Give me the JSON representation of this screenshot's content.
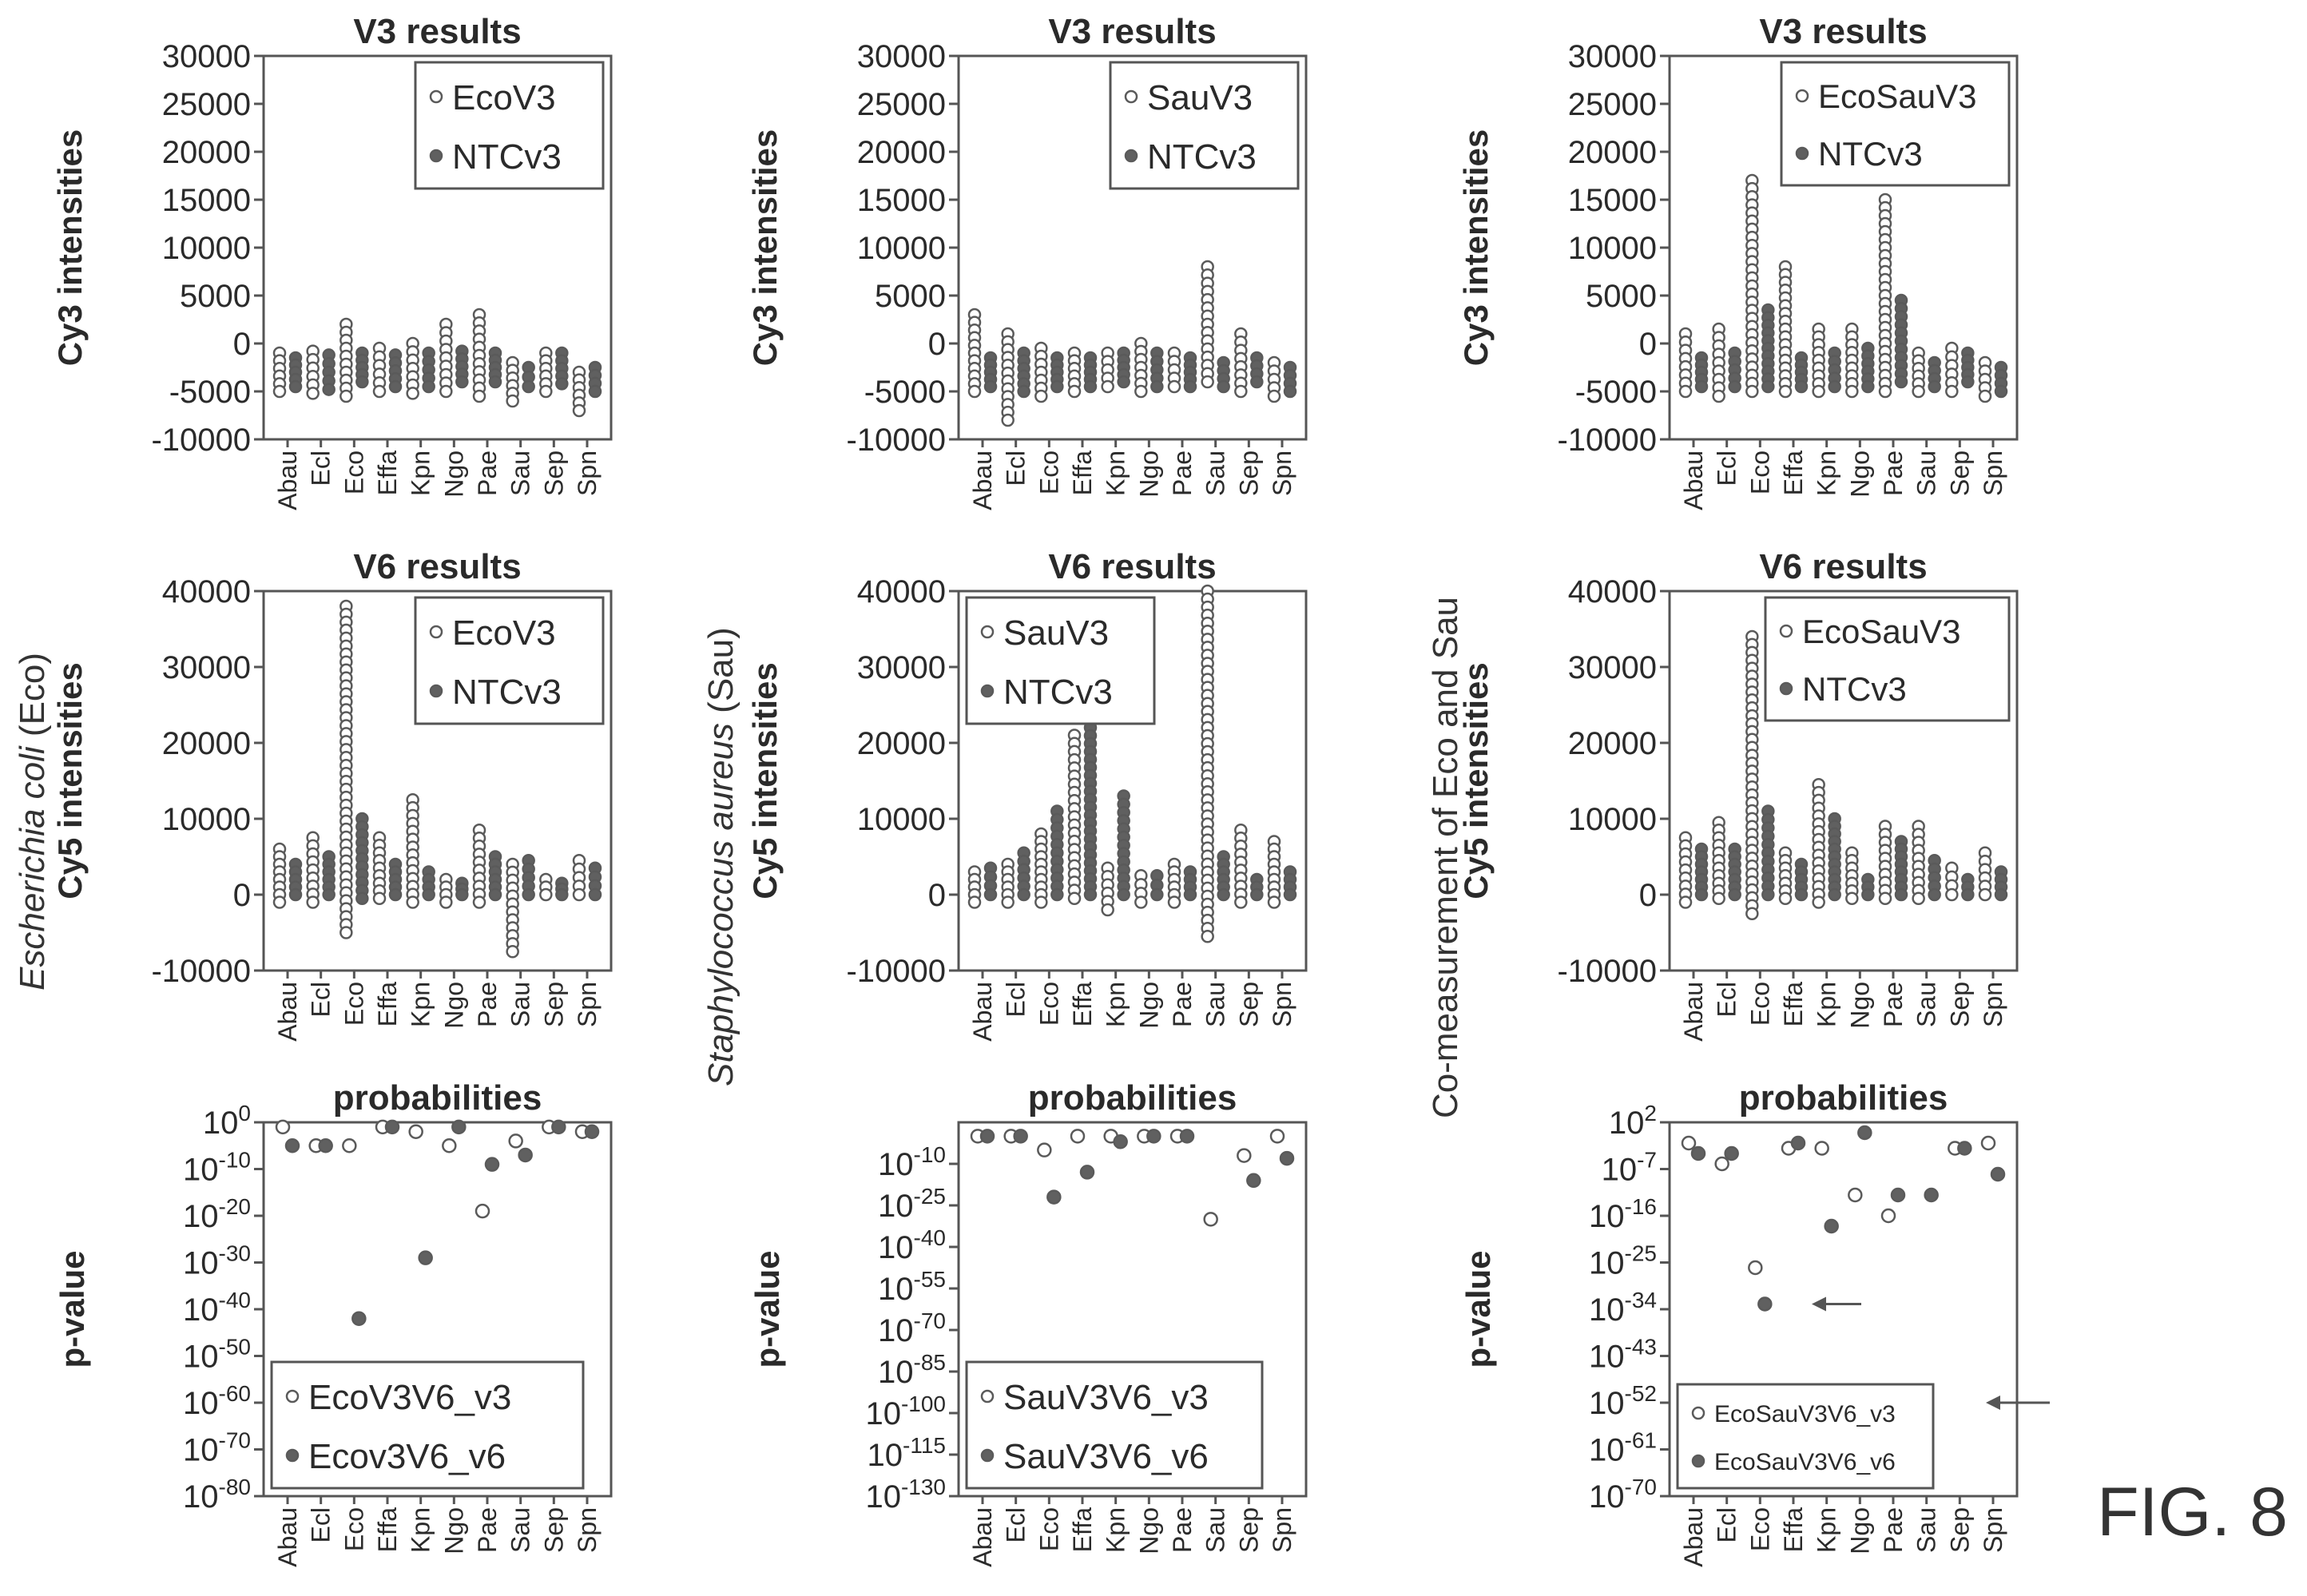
{
  "figure_label": "FIG. 8",
  "row_labels": [
    {
      "species": "Escherichia coli",
      "abbr": "(Eco)"
    },
    {
      "species": "Staphylococcus aureus",
      "abbr": "(Sau)"
    },
    {
      "species": "Co-measurement of Eco and Sau",
      "abbr": ""
    }
  ],
  "chart_data": [
    {
      "type": "scatter",
      "panel": "eco-v3",
      "title": "V3 results",
      "ylabel": "Cy3 intensities",
      "ylim": [
        -10000,
        30000
      ],
      "yticks": [
        "30000",
        "25000",
        "20000",
        "15000",
        "10000",
        "5000",
        "0",
        "-5000",
        "-10000"
      ],
      "categories": [
        "Abau",
        "Ecl",
        "Eco",
        "Effa",
        "Kpn",
        "Ngo",
        "Pae",
        "Sau",
        "Sep",
        "Spn"
      ],
      "series": [
        {
          "name": "EcoV3",
          "style": "open",
          "values": [
            [
              -1000,
              -5000
            ],
            [
              -800,
              -5200
            ],
            [
              2000,
              -5500
            ],
            [
              -500,
              -5000
            ],
            [
              0,
              -5200
            ],
            [
              2000,
              -5000
            ],
            [
              3000,
              -5500
            ],
            [
              -2000,
              -6000
            ],
            [
              -1000,
              -5000
            ],
            [
              -3000,
              -7000
            ]
          ]
        },
        {
          "name": "NTCv3",
          "style": "filled",
          "values": [
            [
              -1500,
              -4500
            ],
            [
              -1200,
              -4800
            ],
            [
              -1000,
              -4000
            ],
            [
              -1200,
              -4500
            ],
            [
              -1000,
              -4500
            ],
            [
              -800,
              -4000
            ],
            [
              -1000,
              -4000
            ],
            [
              -2500,
              -4500
            ],
            [
              -1000,
              -4200
            ],
            [
              -2500,
              -5000
            ]
          ]
        }
      ]
    },
    {
      "type": "scatter",
      "panel": "sau-v3",
      "title": "V3 results",
      "ylabel": "Cy3 intensities",
      "ylim": [
        -10000,
        30000
      ],
      "yticks": [
        "30000",
        "25000",
        "20000",
        "15000",
        "10000",
        "5000",
        "0",
        "-5000",
        "-10000"
      ],
      "categories": [
        "Abau",
        "Ecl",
        "Eco",
        "Effa",
        "Kpn",
        "Ngo",
        "Pae",
        "Sau",
        "Sep",
        "Spn"
      ],
      "series": [
        {
          "name": "SauV3",
          "style": "open",
          "values": [
            [
              3000,
              -5000
            ],
            [
              1000,
              -8000
            ],
            [
              -500,
              -5500
            ],
            [
              -1000,
              -5000
            ],
            [
              -1000,
              -4500
            ],
            [
              0,
              -5000
            ],
            [
              -1000,
              -4500
            ],
            [
              8000,
              -4000
            ],
            [
              1000,
              -5000
            ],
            [
              -2000,
              -5500
            ]
          ]
        },
        {
          "name": "NTCv3",
          "style": "filled",
          "values": [
            [
              -1500,
              -4500
            ],
            [
              -1000,
              -5000
            ],
            [
              -1500,
              -4500
            ],
            [
              -1500,
              -4500
            ],
            [
              -1000,
              -4000
            ],
            [
              -1000,
              -4500
            ],
            [
              -1500,
              -4500
            ],
            [
              -2000,
              -4500
            ],
            [
              -1500,
              -4000
            ],
            [
              -2500,
              -5000
            ]
          ]
        }
      ]
    },
    {
      "type": "scatter",
      "panel": "ecosau-v3",
      "title": "V3 results",
      "ylabel": "Cy3 intensities",
      "ylim": [
        -10000,
        30000
      ],
      "yticks": [
        "30000",
        "25000",
        "20000",
        "15000",
        "10000",
        "5000",
        "0",
        "-5000",
        "-10000"
      ],
      "categories": [
        "Abau",
        "Ecl",
        "Eco",
        "Effa",
        "Kpn",
        "Ngo",
        "Pae",
        "Sau",
        "Sep",
        "Spn"
      ],
      "series": [
        {
          "name": "EcoSauV3",
          "style": "open",
          "values": [
            [
              1000,
              -5000
            ],
            [
              1500,
              -5500
            ],
            [
              17000,
              -5000
            ],
            [
              8000,
              -5000
            ],
            [
              1500,
              -5000
            ],
            [
              1500,
              -5000
            ],
            [
              15000,
              -5000
            ],
            [
              -1000,
              -5000
            ],
            [
              -500,
              -5000
            ],
            [
              -2000,
              -5500
            ]
          ]
        },
        {
          "name": "NTCv3",
          "style": "filled",
          "values": [
            [
              -1500,
              -4500
            ],
            [
              -1000,
              -4500
            ],
            [
              3500,
              -4500
            ],
            [
              -1500,
              -4500
            ],
            [
              -1000,
              -4500
            ],
            [
              -500,
              -4500
            ],
            [
              4500,
              -4000
            ],
            [
              -2000,
              -4500
            ],
            [
              -1000,
              -4000
            ],
            [
              -2500,
              -5000
            ]
          ]
        }
      ]
    },
    {
      "type": "scatter",
      "panel": "eco-v6",
      "title": "V6 results",
      "ylabel": "Cy5 intensities",
      "ylim": [
        -10000,
        40000
      ],
      "yticks": [
        "40000",
        "30000",
        "20000",
        "10000",
        "0",
        "-10000"
      ],
      "categories": [
        "Abau",
        "Ecl",
        "Eco",
        "Effa",
        "Kpn",
        "Ngo",
        "Pae",
        "Sau",
        "Sep",
        "Spn"
      ],
      "series": [
        {
          "name": "EcoV3",
          "style": "open",
          "values": [
            [
              6000,
              -1000
            ],
            [
              7500,
              -1000
            ],
            [
              38000,
              -5000
            ],
            [
              7500,
              -500
            ],
            [
              12500,
              -1000
            ],
            [
              2000,
              -1000
            ],
            [
              8500,
              -1000
            ],
            [
              4000,
              -7500
            ],
            [
              2000,
              0
            ],
            [
              4500,
              0
            ]
          ]
        },
        {
          "name": "NTCv3",
          "style": "filled",
          "values": [
            [
              4000,
              0
            ],
            [
              5000,
              0
            ],
            [
              10000,
              -500
            ],
            [
              4000,
              0
            ],
            [
              3000,
              0
            ],
            [
              1500,
              0
            ],
            [
              5000,
              0
            ],
            [
              4500,
              0
            ],
            [
              1500,
              0
            ],
            [
              3500,
              0
            ]
          ]
        }
      ]
    },
    {
      "type": "scatter",
      "panel": "sau-v6",
      "title": "V6 results",
      "ylabel": "Cy5 intensities",
      "ylim": [
        -10000,
        40000
      ],
      "yticks": [
        "40000",
        "30000",
        "20000",
        "10000",
        "0",
        "-10000"
      ],
      "categories": [
        "Abau",
        "Ecl",
        "Eco",
        "Effa",
        "Kpn",
        "Ngo",
        "Pae",
        "Sau",
        "Sep",
        "Spn"
      ],
      "series": [
        {
          "name": "SauV3",
          "style": "open",
          "values": [
            [
              3000,
              -1000
            ],
            [
              4000,
              -1000
            ],
            [
              8000,
              -1000
            ],
            [
              21000,
              -500
            ],
            [
              3500,
              -2000
            ],
            [
              2500,
              -1000
            ],
            [
              4000,
              -1000
            ],
            [
              40000,
              -5500
            ],
            [
              8500,
              -1000
            ],
            [
              7000,
              -1000
            ]
          ]
        },
        {
          "name": "NTCv3",
          "style": "filled",
          "values": [
            [
              3500,
              0
            ],
            [
              5500,
              0
            ],
            [
              11000,
              0
            ],
            [
              22000,
              0
            ],
            [
              13000,
              0
            ],
            [
              2500,
              0
            ],
            [
              3000,
              0
            ],
            [
              5000,
              0
            ],
            [
              2000,
              0
            ],
            [
              3000,
              0
            ]
          ]
        }
      ]
    },
    {
      "type": "scatter",
      "panel": "ecosau-v6",
      "title": "V6 results",
      "ylabel": "Cy5 intensities",
      "ylim": [
        -10000,
        40000
      ],
      "yticks": [
        "40000",
        "30000",
        "20000",
        "10000",
        "0",
        "-10000"
      ],
      "categories": [
        "Abau",
        "Ecl",
        "Eco",
        "Effa",
        "Kpn",
        "Ngo",
        "Pae",
        "Sau",
        "Sep",
        "Spn"
      ],
      "series": [
        {
          "name": "EcoSauV3",
          "style": "open",
          "values": [
            [
              7500,
              -1000
            ],
            [
              9500,
              -500
            ],
            [
              34000,
              -2500
            ],
            [
              5500,
              -500
            ],
            [
              14500,
              -1000
            ],
            [
              5500,
              -500
            ],
            [
              9000,
              -500
            ],
            [
              9000,
              -500
            ],
            [
              3500,
              0
            ],
            [
              5500,
              0
            ]
          ]
        },
        {
          "name": "NTCv3",
          "style": "filled",
          "values": [
            [
              6000,
              0
            ],
            [
              6000,
              0
            ],
            [
              11000,
              0
            ],
            [
              4000,
              0
            ],
            [
              10000,
              0
            ],
            [
              2000,
              0
            ],
            [
              7000,
              0
            ],
            [
              4500,
              0
            ],
            [
              2000,
              0
            ],
            [
              3000,
              0
            ]
          ]
        }
      ]
    },
    {
      "type": "scatter",
      "panel": "eco-p",
      "title": "probabilities",
      "ylabel": "p-value",
      "scale": "log10",
      "ylim": [
        -80,
        0
      ],
      "yticks": [
        {
          "base": "10",
          "exp": "0"
        },
        {
          "base": "10",
          "exp": "-10"
        },
        {
          "base": "10",
          "exp": "-20"
        },
        {
          "base": "10",
          "exp": "-30"
        },
        {
          "base": "10",
          "exp": "-40"
        },
        {
          "base": "10",
          "exp": "-50"
        },
        {
          "base": "10",
          "exp": "-60"
        },
        {
          "base": "10",
          "exp": "-70"
        },
        {
          "base": "10",
          "exp": "-80"
        }
      ],
      "categories": [
        "Abau",
        "Ecl",
        "Eco",
        "Effa",
        "Kpn",
        "Ngo",
        "Pae",
        "Sau",
        "Sep",
        "Spn"
      ],
      "series": [
        {
          "name": "EcoV3V6_v3",
          "style": "open",
          "values": [
            -1,
            -5,
            -5,
            -1,
            -2,
            -5,
            -19,
            -4,
            -1,
            -2
          ]
        },
        {
          "name": "Ecov3V6_v6",
          "style": "filled",
          "values": [
            -5,
            -5,
            -42,
            -1,
            -29,
            -1,
            -9,
            -7,
            -1,
            -2
          ]
        }
      ]
    },
    {
      "type": "scatter",
      "panel": "sau-p",
      "title": "probabilities",
      "ylabel": "p-value",
      "scale": "log10",
      "ylim": [
        -130,
        5
      ],
      "yticks": [
        {
          "base": "10",
          "exp": "-10"
        },
        {
          "base": "10",
          "exp": "-25"
        },
        {
          "base": "10",
          "exp": "-40"
        },
        {
          "base": "10",
          "exp": "-55"
        },
        {
          "base": "10",
          "exp": "-70"
        },
        {
          "base": "10",
          "exp": "-85"
        },
        {
          "base": "10",
          "exp": "-100"
        },
        {
          "base": "10",
          "exp": "-115"
        },
        {
          "base": "10",
          "exp": "-130"
        }
      ],
      "categories": [
        "Abau",
        "Ecl",
        "Eco",
        "Effa",
        "Kpn",
        "Ngo",
        "Pae",
        "Sau",
        "Sep",
        "Spn"
      ],
      "series": [
        {
          "name": "SauV3V6_v3",
          "style": "open",
          "values": [
            0,
            0,
            -5,
            0,
            0,
            0,
            0,
            -30,
            -7,
            0
          ]
        },
        {
          "name": "SauV3V6_v6",
          "style": "filled",
          "values": [
            0,
            0,
            -22,
            -13,
            -2,
            0,
            0,
            -113,
            -16,
            -8
          ]
        }
      ]
    },
    {
      "type": "scatter",
      "panel": "ecosau-p",
      "title": "probabilities",
      "ylabel": "p-value",
      "scale": "log10",
      "ylim": [
        -70,
        2
      ],
      "yticks": [
        {
          "base": "10",
          "exp": "2"
        },
        {
          "base": "10",
          "exp": "-7"
        },
        {
          "base": "10",
          "exp": "-16"
        },
        {
          "base": "10",
          "exp": "-25"
        },
        {
          "base": "10",
          "exp": "-34"
        },
        {
          "base": "10",
          "exp": "-43"
        },
        {
          "base": "10",
          "exp": "-52"
        },
        {
          "base": "10",
          "exp": "-61"
        },
        {
          "base": "10",
          "exp": "-70"
        }
      ],
      "categories": [
        "Abau",
        "Ecl",
        "Eco",
        "Effa",
        "Kpn",
        "Ngo",
        "Pae",
        "Sau",
        "Sep",
        "Spn"
      ],
      "series": [
        {
          "name": "EcoSauV3V6_v3",
          "style": "open",
          "values": [
            -2,
            -6,
            -26,
            -3,
            -3,
            -12,
            -16,
            -52,
            -3,
            -2
          ]
        },
        {
          "name": "EcoSauV3V6_v6",
          "style": "filled",
          "values": [
            -4,
            -4,
            -33,
            -2,
            -18,
            0,
            -12,
            -12,
            -3,
            -8
          ]
        }
      ]
    }
  ]
}
